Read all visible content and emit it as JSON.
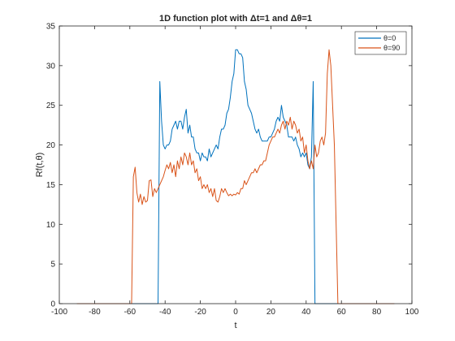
{
  "chart_data": {
    "type": "line",
    "title": "1D function plot with Δt=1 and Δθ=1",
    "xlabel": "t",
    "ylabel": "Rf(t,θ)",
    "xlim": [
      -100,
      100
    ],
    "ylim": [
      0,
      35
    ],
    "xticks": [
      -100,
      -80,
      -60,
      -40,
      -20,
      0,
      20,
      40,
      60,
      80,
      100
    ],
    "yticks": [
      0,
      5,
      10,
      15,
      20,
      25,
      30,
      35
    ],
    "grid": false,
    "legend_position": "top-right",
    "series": [
      {
        "name": "θ=0",
        "color": "#0072BD",
        "points": [
          [
            -90,
            0
          ],
          [
            -44,
            0
          ],
          [
            -43,
            28
          ],
          [
            -42,
            23
          ],
          [
            -41,
            20
          ],
          [
            -40,
            19.5
          ],
          [
            -39,
            20
          ],
          [
            -38,
            20
          ],
          [
            -37,
            20.5
          ],
          [
            -36,
            22
          ],
          [
            -35,
            22.5
          ],
          [
            -34,
            23
          ],
          [
            -33,
            22
          ],
          [
            -32,
            23
          ],
          [
            -31,
            23
          ],
          [
            -30,
            22
          ],
          [
            -29,
            23.5
          ],
          [
            -28,
            24.5
          ],
          [
            -27,
            21.5
          ],
          [
            -26,
            22.5
          ],
          [
            -25,
            21
          ],
          [
            -24,
            21
          ],
          [
            -23,
            19.5
          ],
          [
            -22,
            19
          ],
          [
            -21,
            19
          ],
          [
            -20,
            18
          ],
          [
            -19,
            19
          ],
          [
            -18,
            18.5
          ],
          [
            -17,
            18.5
          ],
          [
            -16,
            18
          ],
          [
            -15,
            19.5
          ],
          [
            -14,
            18.5
          ],
          [
            -13,
            19
          ],
          [
            -12,
            19.5
          ],
          [
            -11,
            20
          ],
          [
            -10,
            19.5
          ],
          [
            -9,
            21
          ],
          [
            -8,
            22
          ],
          [
            -7,
            22
          ],
          [
            -6,
            22.5
          ],
          [
            -5,
            24
          ],
          [
            -4,
            24.5
          ],
          [
            -3,
            26
          ],
          [
            -2,
            28
          ],
          [
            -1,
            29
          ],
          [
            0,
            32
          ],
          [
            1,
            32
          ],
          [
            2,
            31.5
          ],
          [
            3,
            31.5
          ],
          [
            4,
            31
          ],
          [
            5,
            28
          ],
          [
            6,
            27
          ],
          [
            7,
            25
          ],
          [
            8,
            24.5
          ],
          [
            9,
            24
          ],
          [
            10,
            23
          ],
          [
            11,
            22
          ],
          [
            12,
            21.5
          ],
          [
            13,
            22
          ],
          [
            14,
            21
          ],
          [
            15,
            20.5
          ],
          [
            16,
            20.5
          ],
          [
            17,
            20.5
          ],
          [
            18,
            20.5
          ],
          [
            19,
            21
          ],
          [
            20,
            21
          ],
          [
            21,
            21.5
          ],
          [
            22,
            22
          ],
          [
            23,
            23
          ],
          [
            24,
            23.5
          ],
          [
            25,
            23
          ],
          [
            26,
            25
          ],
          [
            27,
            23.5
          ],
          [
            28,
            23
          ],
          [
            29,
            22.5
          ],
          [
            30,
            21
          ],
          [
            31,
            21
          ],
          [
            32,
            21
          ],
          [
            33,
            20.5
          ],
          [
            34,
            21
          ],
          [
            35,
            20
          ],
          [
            36,
            19.5
          ],
          [
            37,
            18.5
          ],
          [
            38,
            19
          ],
          [
            39,
            18.5
          ],
          [
            40,
            19
          ],
          [
            41,
            17.5
          ],
          [
            42,
            17
          ],
          [
            43,
            18.5
          ],
          [
            44,
            28
          ],
          [
            45,
            0
          ],
          [
            90,
            0
          ]
        ]
      },
      {
        "name": "θ=90",
        "color": "#D95319",
        "points": [
          [
            -90,
            0
          ],
          [
            -59,
            0
          ],
          [
            -58,
            16
          ],
          [
            -57,
            17.2
          ],
          [
            -56,
            14
          ],
          [
            -55,
            12.8
          ],
          [
            -54,
            13.8
          ],
          [
            -53,
            12.5
          ],
          [
            -52,
            13.5
          ],
          [
            -51,
            12.8
          ],
          [
            -50,
            13
          ],
          [
            -49,
            15.5
          ],
          [
            -48,
            15.6
          ],
          [
            -47,
            13.5
          ],
          [
            -46,
            14.5
          ],
          [
            -45,
            14
          ],
          [
            -44,
            14.5
          ],
          [
            -43,
            15
          ],
          [
            -42,
            15.5
          ],
          [
            -41,
            16
          ],
          [
            -40,
            16.8
          ],
          [
            -39,
            17.5
          ],
          [
            -38,
            17
          ],
          [
            -37,
            17.8
          ],
          [
            -36,
            16.5
          ],
          [
            -35,
            17.5
          ],
          [
            -34,
            16
          ],
          [
            -33,
            18
          ],
          [
            -32,
            17
          ],
          [
            -31,
            18.5
          ],
          [
            -30,
            17.5
          ],
          [
            -29,
            19
          ],
          [
            -28,
            18.5
          ],
          [
            -27,
            17.5
          ],
          [
            -26,
            19
          ],
          [
            -25,
            17.5
          ],
          [
            -24,
            18
          ],
          [
            -23,
            16.5
          ],
          [
            -22,
            17
          ],
          [
            -21,
            15.5
          ],
          [
            -20,
            16
          ],
          [
            -19,
            14.5
          ],
          [
            -18,
            15
          ],
          [
            -17,
            14.5
          ],
          [
            -16,
            15
          ],
          [
            -15,
            14
          ],
          [
            -14,
            14.5
          ],
          [
            -13,
            13.5
          ],
          [
            -12,
            14.5
          ],
          [
            -11,
            13
          ],
          [
            -10,
            12.8
          ],
          [
            -9,
            13.5
          ],
          [
            -8,
            14.5
          ],
          [
            -7,
            14
          ],
          [
            -6,
            14.5
          ],
          [
            -5,
            14
          ],
          [
            -4,
            13.6
          ],
          [
            -3,
            13.8
          ],
          [
            -2,
            13.6
          ],
          [
            -1,
            13.8
          ],
          [
            0,
            13.7
          ],
          [
            1,
            14
          ],
          [
            2,
            13.8
          ],
          [
            3,
            14.5
          ],
          [
            4,
            14.5
          ],
          [
            5,
            15.5
          ],
          [
            6,
            15
          ],
          [
            7,
            15.5
          ],
          [
            8,
            16
          ],
          [
            9,
            16.5
          ],
          [
            10,
            16.5
          ],
          [
            11,
            17
          ],
          [
            12,
            16.5
          ],
          [
            13,
            17
          ],
          [
            14,
            17.5
          ],
          [
            15,
            17.5
          ],
          [
            16,
            18
          ],
          [
            17,
            18
          ],
          [
            18,
            19
          ],
          [
            19,
            20
          ],
          [
            20,
            20.5
          ],
          [
            21,
            21
          ],
          [
            22,
            21
          ],
          [
            23,
            21.5
          ],
          [
            24,
            22
          ],
          [
            25,
            21.5
          ],
          [
            26,
            22.5
          ],
          [
            27,
            23
          ],
          [
            28,
            22
          ],
          [
            29,
            23
          ],
          [
            30,
            22.5
          ],
          [
            31,
            23.5
          ],
          [
            32,
            22
          ],
          [
            33,
            23
          ],
          [
            34,
            22.5
          ],
          [
            35,
            21.5
          ],
          [
            36,
            22
          ],
          [
            37,
            20.5
          ],
          [
            38,
            21
          ],
          [
            39,
            19
          ],
          [
            40,
            20
          ],
          [
            41,
            18
          ],
          [
            42,
            17
          ],
          [
            43,
            18
          ],
          [
            44,
            17
          ],
          [
            45,
            20
          ],
          [
            46,
            18.5
          ],
          [
            47,
            19
          ],
          [
            48,
            20.5
          ],
          [
            49,
            21
          ],
          [
            50,
            20
          ],
          [
            51,
            21.5
          ],
          [
            52,
            29
          ],
          [
            53,
            32
          ],
          [
            54,
            30
          ],
          [
            55,
            25
          ],
          [
            56,
            20
          ],
          [
            57,
            10
          ],
          [
            58,
            0
          ],
          [
            90,
            0
          ]
        ]
      }
    ]
  }
}
